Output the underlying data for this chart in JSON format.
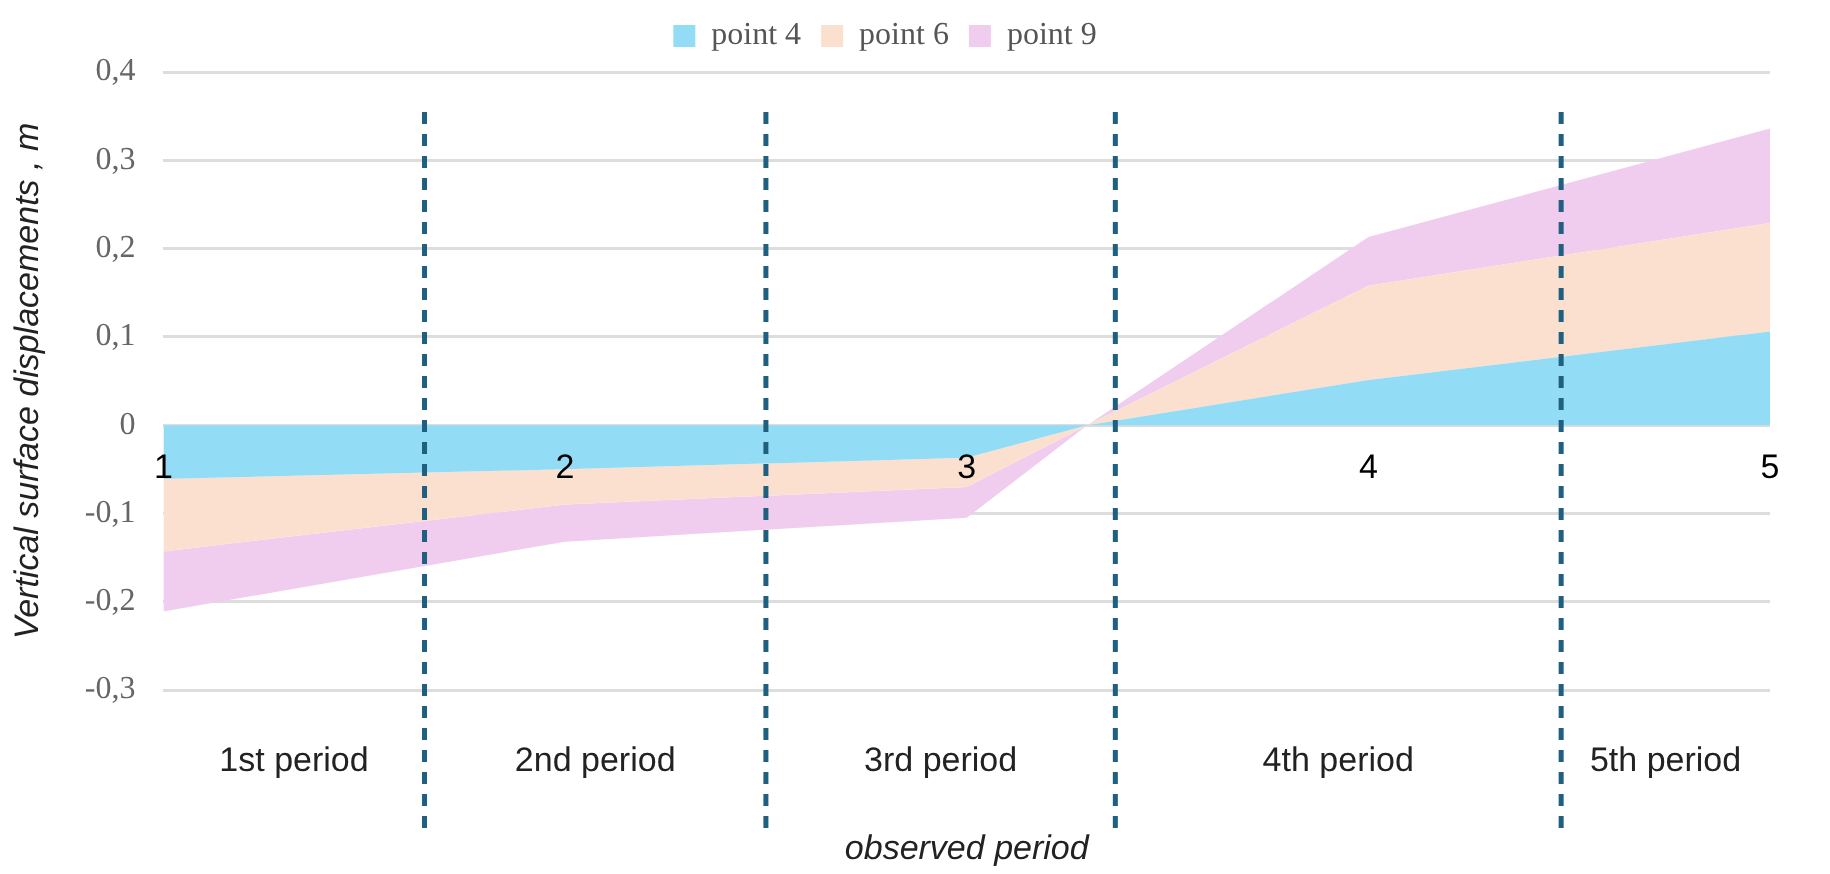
{
  "chart_data": {
    "type": "area",
    "stacked": true,
    "xlabel": "observed period",
    "ylabel": "Vertical surface displacements , m",
    "x": [
      1,
      2,
      3,
      3.3,
      4,
      5
    ],
    "series": [
      {
        "name": "point 4",
        "color": "#93dcf5",
        "values": [
          -0.061,
          -0.05,
          -0.037,
          0,
          0.051,
          0.106
        ]
      },
      {
        "name": "point 6",
        "color": "#fbe0d0",
        "values": [
          -0.082,
          -0.04,
          -0.033,
          0,
          0.107,
          0.123
        ]
      },
      {
        "name": "point 9",
        "color": "#f0cdee",
        "values": [
          -0.068,
          -0.042,
          -0.035,
          0,
          0.055,
          0.107
        ]
      }
    ],
    "xlim": [
      1,
      5
    ],
    "xticks": [
      1,
      2,
      3,
      4,
      5
    ],
    "ylim": [
      -0.3,
      0.4
    ],
    "yticks": [
      {
        "value": -0.3,
        "label": "-0,3"
      },
      {
        "value": -0.2,
        "label": "-0,2"
      },
      {
        "value": -0.1,
        "label": "-0,1"
      },
      {
        "value": 0,
        "label": "0"
      },
      {
        "value": 0.1,
        "label": "0,1"
      },
      {
        "value": 0.2,
        "label": "0,2"
      },
      {
        "value": 0.3,
        "label": "0,3"
      },
      {
        "value": 0.4,
        "label": "0,4"
      }
    ],
    "ref_lines": [
      {
        "axis": "x",
        "value": 1.65,
        "color": "#1f5f7f",
        "line_style": "dashed"
      },
      {
        "axis": "x",
        "value": 2.5,
        "color": "#1f5f7f",
        "line_style": "dashed"
      },
      {
        "axis": "x",
        "value": 3.37,
        "color": "#1f5f7f",
        "line_style": "dashed"
      },
      {
        "axis": "x",
        "value": 4.48,
        "color": "#1f5f7f",
        "line_style": "dashed"
      }
    ],
    "annotations": [
      "1st period",
      "2nd period",
      "3rd period",
      "4th period",
      "5th period"
    ],
    "grid": "y",
    "legend": "top"
  }
}
